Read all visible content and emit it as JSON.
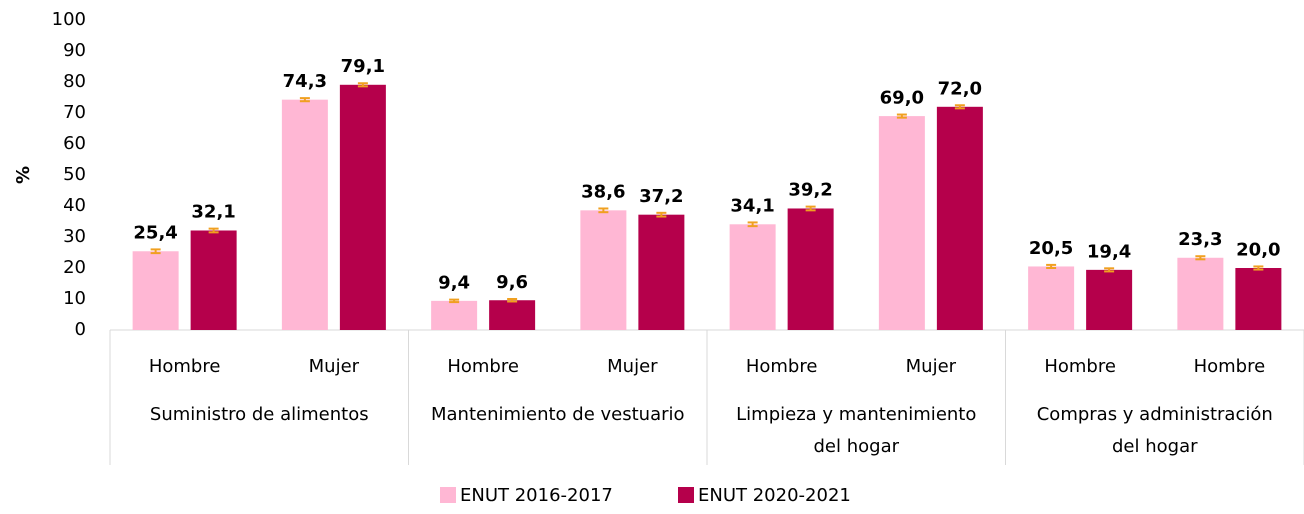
{
  "chart_data": {
    "type": "bar",
    "y_label": "%",
    "categories": [
      "Hombre",
      "Mujer",
      "Hombre",
      "Mujer",
      "Hombre",
      "Mujer",
      "Hombre",
      "Hombre"
    ],
    "groups": [
      {
        "label": [
          "Suministro de alimentos"
        ],
        "span": 2
      },
      {
        "label": [
          "Mantenimiento de vestuario"
        ],
        "span": 2
      },
      {
        "label": [
          "Limpieza y mantenimiento",
          "del hogar"
        ],
        "span": 2
      },
      {
        "label": [
          "Compras y administración",
          "del hogar"
        ],
        "span": 2
      }
    ],
    "series": [
      {
        "name": "ENUT 2016-2017",
        "color": "#ffb7d4",
        "values": [
          25.4,
          74.3,
          9.4,
          38.6,
          34.1,
          69.0,
          20.5,
          23.3
        ],
        "value_labels": [
          "25,4",
          "74,3",
          "9,4",
          "38,6",
          "34,1",
          "69,0",
          "20,5",
          "23,3"
        ],
        "errors": [
          0.6,
          0.5,
          0.4,
          0.6,
          0.6,
          0.5,
          0.5,
          0.5
        ]
      },
      {
        "name": "ENUT 2020-2021",
        "color": "#b5004b",
        "values": [
          32.1,
          79.1,
          9.6,
          37.2,
          39.2,
          72.0,
          19.4,
          20.0
        ],
        "value_labels": [
          "32,1",
          "79,1",
          "9,6",
          "37,2",
          "39,2",
          "72,0",
          "19,4",
          "20,0"
        ],
        "errors": [
          0.6,
          0.5,
          0.4,
          0.6,
          0.6,
          0.5,
          0.5,
          0.5
        ]
      }
    ],
    "error_color": "#f0a020",
    "ylim": [
      0,
      100
    ],
    "yticks": [
      0,
      10,
      20,
      30,
      40,
      50,
      60,
      70,
      80,
      90,
      100
    ],
    "legend": "bottom"
  }
}
